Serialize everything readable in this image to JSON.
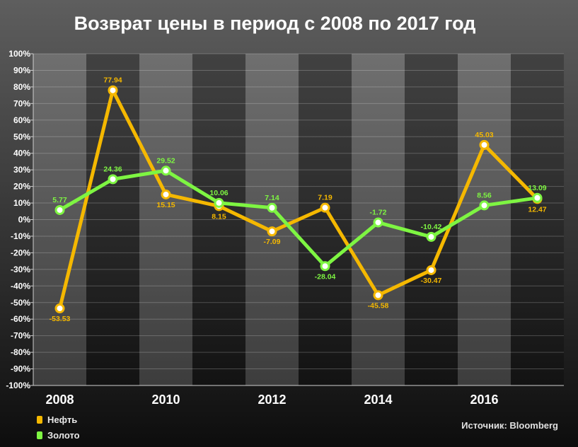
{
  "chart_data": {
    "type": "line",
    "title": "Возврат цены в период с 2008 по 2017 год",
    "xlabel": "",
    "ylabel": "",
    "x": [
      2008,
      2009,
      2010,
      2011,
      2012,
      2013,
      2014,
      2015,
      2016,
      2017
    ],
    "x_tick_labels": [
      "2008",
      "2010",
      "2012",
      "2014",
      "2016"
    ],
    "x_tick_values": [
      2008,
      2010,
      2012,
      2014,
      2016
    ],
    "ylim": [
      -100,
      100
    ],
    "y_ticks": [
      100,
      90,
      80,
      70,
      60,
      50,
      40,
      30,
      20,
      10,
      0,
      -10,
      -20,
      -30,
      -40,
      -50,
      -60,
      -70,
      -80,
      -90,
      -100
    ],
    "y_tick_labels": [
      "100%",
      "90%",
      "80%",
      "70%",
      "60%",
      "50%",
      "40%",
      "30%",
      "20%",
      "10%",
      "0%",
      "-10%",
      "-20%",
      "-30%",
      "-40%",
      "-50%",
      "-60%",
      "-70%",
      "-80%",
      "-90%",
      "-100%"
    ],
    "grid": true,
    "legend_position": "bottom-left",
    "series": [
      {
        "name": "Нефть",
        "color": "#f5b800",
        "values": [
          -53.53,
          77.94,
          15.15,
          8.15,
          -7.09,
          7.19,
          -45.58,
          -30.47,
          45.03,
          12.47
        ],
        "labels": [
          "-53.53",
          "77.94",
          "15.15",
          "8.15",
          "-7.09",
          "7.19",
          "-45.58",
          "-30.47",
          "45.03",
          "12.47"
        ]
      },
      {
        "name": "Золото",
        "color": "#7ef542",
        "values": [
          5.77,
          24.36,
          29.52,
          10.06,
          7.14,
          -28.04,
          -1.72,
          -10.42,
          8.56,
          13.09
        ],
        "labels": [
          "5.77",
          "24.36",
          "29.52",
          "10.06",
          "7.14",
          "-28.04",
          "-1.72",
          "-10.42",
          "8.56",
          "13.09"
        ]
      }
    ]
  },
  "source": "Источник: Bloomberg"
}
